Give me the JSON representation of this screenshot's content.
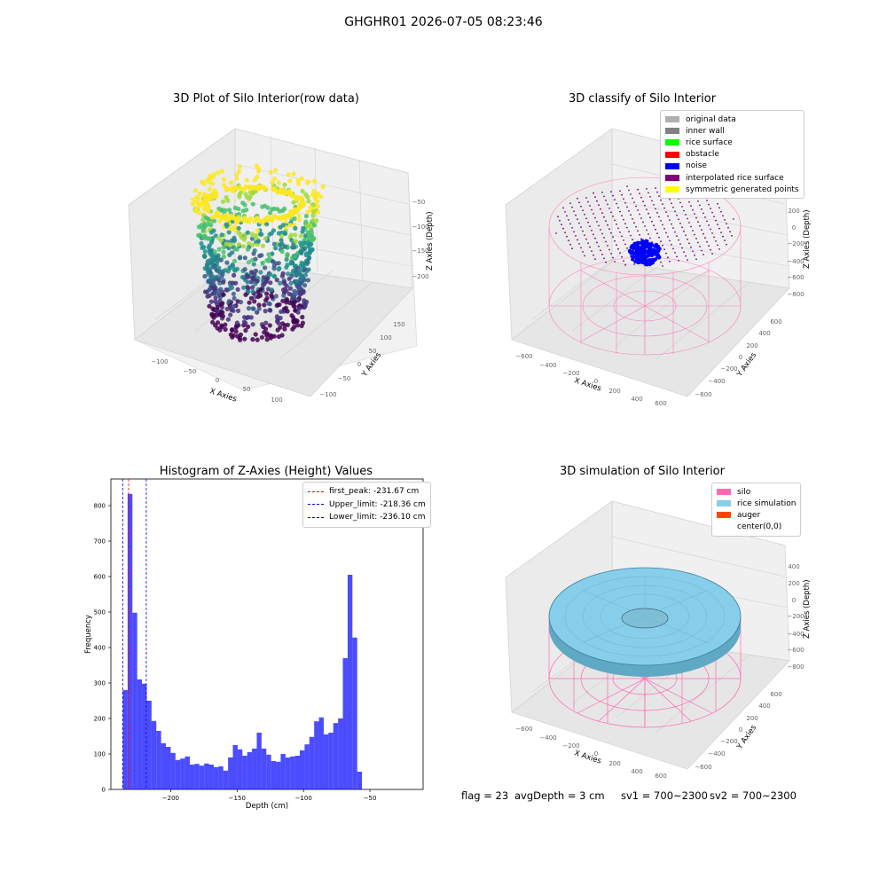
{
  "suptitle": "GHGHR01 2026-07-05 08:23:46",
  "chart_data": [
    {
      "type": "scatter",
      "title": "3D Plot of Silo Interior(row data)",
      "xlabel": "X Axies",
      "ylabel": "Y Axies",
      "zlabel": "Z Axies (Depth)",
      "x_ticks": [
        "−100",
        "−50",
        "0",
        "50",
        "100"
      ],
      "y_ticks": [
        "150",
        "100",
        "50",
        "0",
        "−50",
        "−100"
      ],
      "z_ticks": [
        "−50",
        "−100",
        "−150",
        "−200"
      ],
      "colormap": "viridis",
      "colors": {
        "low": "#440154",
        "mid": "#21918c",
        "high": "#fde725"
      }
    },
    {
      "type": "scatter",
      "title": "3D classify of Silo Interior",
      "xlabel": "X Axies",
      "ylabel": "Y Axies",
      "zlabel": "Z Axies (Depth)",
      "x_ticks": [
        "−600",
        "−400",
        "−200",
        "0",
        "200",
        "400",
        "600"
      ],
      "y_ticks": [
        "600",
        "400",
        "200",
        "0",
        "−200",
        "−400",
        "−600"
      ],
      "z_ticks": [
        "200",
        "0",
        "−200",
        "−400",
        "−600",
        "−800"
      ],
      "legend": [
        {
          "label": "original data",
          "color": "#b0b0b0"
        },
        {
          "label": "inner wall",
          "color": "#808080"
        },
        {
          "label": "rice surface",
          "color": "#00ff00"
        },
        {
          "label": "obstacle",
          "color": "#ff0000"
        },
        {
          "label": "noise",
          "color": "#0000ff"
        },
        {
          "label": "interpolated rice surface",
          "color": "#800080"
        },
        {
          "label": "symmetric generated points",
          "color": "#ffff00"
        }
      ]
    },
    {
      "type": "bar",
      "title": "Histogram of Z-Axies (Height) Values",
      "xlabel": "Depth (cm)",
      "ylabel": "Frequency",
      "xlim": [
        -245,
        -10
      ],
      "ylim": [
        0,
        875
      ],
      "x_ticks": [
        -200,
        -150,
        -100,
        -50
      ],
      "x_tick_labels": [
        "−200",
        "−150",
        "−100",
        "−50"
      ],
      "y_ticks": [
        0,
        100,
        200,
        300,
        400,
        500,
        600,
        700,
        800
      ],
      "bin_start": -236,
      "bin_width": 3.6,
      "values": [
        280,
        833,
        498,
        310,
        298,
        250,
        193,
        165,
        130,
        120,
        103,
        83,
        87,
        93,
        70,
        72,
        67,
        73,
        70,
        63,
        65,
        53,
        90,
        125,
        113,
        95,
        105,
        115,
        160,
        115,
        98,
        80,
        78,
        100,
        90,
        93,
        95,
        110,
        127,
        148,
        192,
        203,
        155,
        160,
        187,
        200,
        370,
        605,
        428,
        50
      ],
      "bar_color": "#0000ff",
      "vlines": [
        {
          "label": "first_peak: -231.67 cm",
          "x": -231.67,
          "color": "#ff0000"
        },
        {
          "label": "Upper_limit: -218.36 cm",
          "x": -218.36,
          "color": "#0000ff"
        },
        {
          "label": "Lower_limit: -236.10 cm",
          "x": -236.1,
          "color": "#0000cc"
        }
      ]
    },
    {
      "type": "scatter",
      "title": "3D simulation of Silo Interior",
      "xlabel": "X Axies",
      "ylabel": "Y Axies",
      "zlabel": "Z Axies (Depth)",
      "x_ticks": [
        "−600",
        "−400",
        "−200",
        "0",
        "200",
        "400",
        "600"
      ],
      "y_ticks": [
        "600",
        "400",
        "200",
        "0",
        "−200",
        "−400",
        "−600"
      ],
      "z_ticks": [
        "400",
        "200",
        "0",
        "−200",
        "−400",
        "−600",
        "−800"
      ],
      "legend": [
        {
          "label": "silo",
          "color": "#ff69b4"
        },
        {
          "label": "rice simulation",
          "color": "#87ceeb"
        },
        {
          "label": "auger",
          "color": "#ff4500"
        },
        {
          "label": "center(0,0)",
          "color": ""
        }
      ]
    }
  ],
  "status": {
    "flag": "flag = 23",
    "avg_depth": "avgDepth = 3 cm",
    "sv1": "sv1 = 700~2300",
    "sv2": "sv2 = 700~2300"
  }
}
